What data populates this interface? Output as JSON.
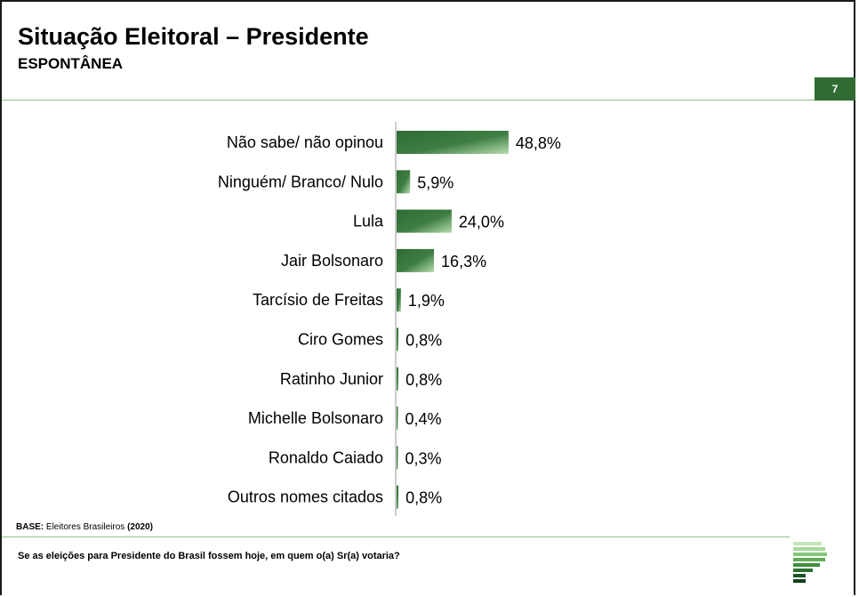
{
  "header": {
    "title": "Situação Eleitoral – Presidente",
    "subtitle": "ESPONTÂNEA",
    "page_number": "7"
  },
  "footer": {
    "base_label": "BASE:",
    "base_text": "Eleitores Brasileiros",
    "base_year": "(2020)",
    "question": "Se as eleições para Presidente do Brasil fossem hoje, em quem o(a) Sr(a) votaria?"
  },
  "colors": {
    "accent": "#2f6b33",
    "bar_dark": "#2f6b33",
    "bar_light": "#a9d3a1",
    "divider": "#8fbf8a"
  },
  "logo": {
    "icon": "pollster-logo-icon"
  },
  "chart_data": {
    "type": "bar",
    "orientation": "horizontal",
    "categories": [
      "Não sabe/ não opinou",
      "Ninguém/ Branco/ Nulo",
      "Lula",
      "Jair Bolsonaro",
      "Tarcísio de Freitas",
      "Ciro Gomes",
      "Ratinho Junior",
      "Michelle Bolsonaro",
      "Ronaldo Caiado",
      "Outros nomes citados"
    ],
    "values": [
      48.8,
      5.9,
      24.0,
      16.3,
      1.9,
      0.8,
      0.8,
      0.4,
      0.3,
      0.8
    ],
    "data_labels": [
      "48,8%",
      "5,9%",
      "24,0%",
      "16,3%",
      "1,9%",
      "0,8%",
      "0,8%",
      "0,4%",
      "0,3%",
      "0,8%"
    ],
    "xlim": [
      0,
      100
    ],
    "grid": false,
    "legend": "none"
  }
}
